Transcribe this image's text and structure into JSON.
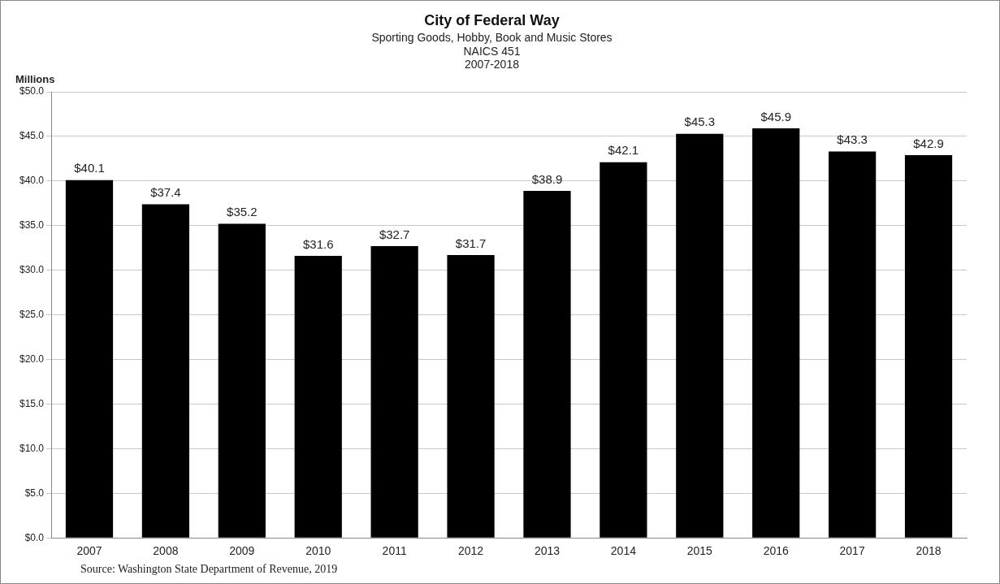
{
  "chart_data": {
    "type": "bar",
    "title": "City of Federal Way",
    "subtitle": "Sporting Goods, Hobby, Book and Music Stores\nNAICS 451\n2007-2018",
    "ylabel": "Millions",
    "categories": [
      "2007",
      "2008",
      "2009",
      "2010",
      "2011",
      "2012",
      "2013",
      "2014",
      "2015",
      "2016",
      "2017",
      "2018"
    ],
    "values": [
      40.1,
      37.4,
      35.2,
      31.6,
      32.7,
      31.7,
      38.9,
      42.1,
      45.3,
      45.9,
      43.3,
      42.9
    ],
    "value_labels": [
      "$40.1",
      "$37.4",
      "$35.2",
      "$31.6",
      "$32.7",
      "$31.7",
      "$38.9",
      "$42.1",
      "$45.3",
      "$45.9",
      "$43.3",
      "$42.9"
    ],
    "color": "#000000",
    "ylim": [
      0,
      50
    ],
    "yticks": [
      {
        "value": 0,
        "label": "$0.0"
      },
      {
        "value": 5,
        "label": "$5.0"
      },
      {
        "value": 10,
        "label": "$10.0"
      },
      {
        "value": 15,
        "label": "$15.0"
      },
      {
        "value": 20,
        "label": "$20.0"
      },
      {
        "value": 25,
        "label": "$25.0"
      },
      {
        "value": 30,
        "label": "$30.0"
      },
      {
        "value": 35,
        "label": "$35.0"
      },
      {
        "value": 40,
        "label": "$40.0"
      },
      {
        "value": 45,
        "label": "$45.0"
      },
      {
        "value": 50,
        "label": "$50.0"
      }
    ],
    "grid": "y",
    "legend": false,
    "annotations": [
      "Source: Washington State Department of Revenue, 2019"
    ]
  }
}
